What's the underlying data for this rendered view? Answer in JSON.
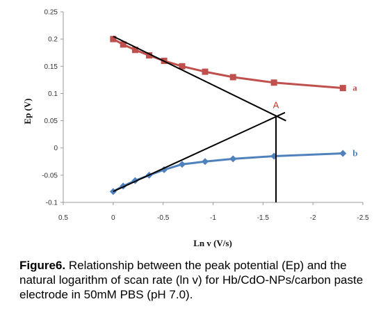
{
  "chart_data": {
    "type": "line",
    "xlabel": "Ln v (V/s)",
    "ylabel": "Ep (V)",
    "xlim": [
      0.5,
      -2.5
    ],
    "ylim": [
      -0.1,
      0.25
    ],
    "x_ticks": [
      "0.5",
      "0",
      "-0.5",
      "-1",
      "-1.5",
      "-2",
      "-2.5"
    ],
    "y_ticks": [
      "0.25",
      "0.2",
      "0.15",
      "0.1",
      "0.05",
      "0",
      "-0.05",
      "-0.1"
    ],
    "grid": false,
    "series": [
      {
        "name": "a",
        "color": "#c0504d",
        "marker": "square",
        "x": [
          0,
          -0.1,
          -0.22,
          -0.36,
          -0.51,
          -0.69,
          -0.92,
          -1.2,
          -1.61,
          -2.3
        ],
        "y": [
          0.2,
          0.19,
          0.18,
          0.17,
          0.16,
          0.15,
          0.14,
          0.13,
          0.12,
          0.11
        ]
      },
      {
        "name": "b",
        "color": "#4f81bd",
        "marker": "diamond",
        "x": [
          0,
          -0.1,
          -0.22,
          -0.36,
          -0.51,
          -0.69,
          -0.92,
          -1.2,
          -1.61,
          -2.3
        ],
        "y": [
          -0.08,
          -0.07,
          -0.06,
          -0.05,
          -0.04,
          -0.03,
          -0.025,
          -0.02,
          -0.015,
          -0.01
        ]
      }
    ],
    "annotations": [
      {
        "text": "A",
        "x": -1.63,
        "y": 0.06
      }
    ],
    "guide_lines": [
      {
        "name": "tangent-a",
        "x1": 0,
        "y1": 0.205,
        "x2": -1.73,
        "y2": 0.05
      },
      {
        "name": "tangent-b",
        "x1": 0,
        "y1": -0.08,
        "x2": -1.72,
        "y2": 0.065
      },
      {
        "name": "intersection-drop",
        "x1": -1.63,
        "y1": 0.06,
        "x2": -1.63,
        "y2": -0.1
      }
    ]
  },
  "caption": {
    "label": "Figure6.",
    "text": " Relationship between the peak potential (Ep) and the natural logarithm of scan rate (ln v) for Hb/CdO-NPs/carbon paste electrode in 50mM PBS (pH 7.0)."
  }
}
